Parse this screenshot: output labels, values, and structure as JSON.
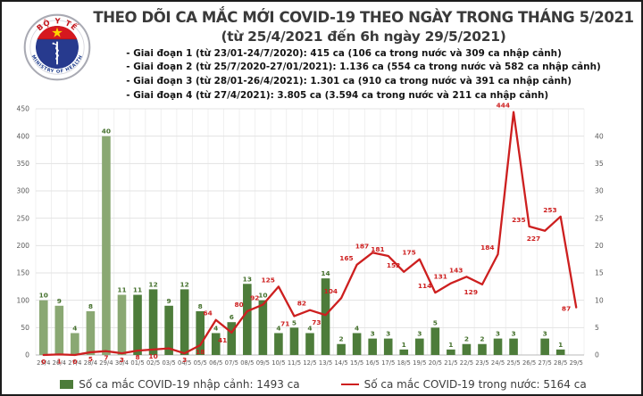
{
  "header": {
    "title": "THEO DÕI CA MẮC MỚI COVID-19 THEO NGÀY TRONG THÁNG 5/2021",
    "subtitle": "(từ 25/4/2021 đến 6h ngày 29/5/2021)",
    "bullets": [
      "- Giai đoạn 1 (từ 23/01-24/7/2020): 415 ca (106 ca trong nước và 309 ca nhập cảnh)",
      "- Giai đoạn 2 (từ 25/7/2020-27/01/2021): 1.136 ca (554 ca trong nước và 582 ca nhập cảnh)",
      "- Giai đoạn 3 (từ 28/01-26/4/2021): 1.301 ca (910 ca trong nước và 391 ca nhập cảnh)",
      "- Giai đoạn 4 (từ 27/4/2021): 3.805 ca (3.594 ca trong nước và 211 ca nhập cảnh)"
    ],
    "logo": {
      "top_text": "BỘ Y TẾ",
      "bottom_text": "MINISTRY OF HEALTH"
    }
  },
  "chart_data": {
    "type": "bar+line",
    "categories": [
      "25/4",
      "26/4",
      "27/4",
      "28/4",
      "29/4",
      "30/4",
      "01/5",
      "02/5",
      "03/5",
      "04/5",
      "05/5",
      "06/5",
      "07/5",
      "08/5",
      "09/5",
      "10/5",
      "11/5",
      "12/5",
      "13/5",
      "14/5",
      "15/5",
      "16/5",
      "17/5",
      "18/5",
      "19/5",
      "20/5",
      "21/5",
      "22/5",
      "23/5",
      "24/5",
      "25/5",
      "26/5",
      "27/5",
      "28/5",
      "29/5"
    ],
    "series": [
      {
        "name": "Số ca mắc COVID-19 nhập cảnh",
        "type": "bar",
        "axis": "right",
        "values": [
          10,
          9,
          4,
          8,
          40,
          11,
          11,
          12,
          9,
          12,
          8,
          4,
          6,
          13,
          10,
          4,
          5,
          4,
          14,
          2,
          4,
          3,
          3,
          1,
          3,
          5,
          1,
          2,
          2,
          3,
          3,
          0,
          3,
          1,
          0
        ],
        "color_april": "#8aa873",
        "color_may": "#4d7c3a",
        "april_bar_count": 6,
        "label_color": "#44702c"
      },
      {
        "name": "Số ca mắc COVID-19 trong nước",
        "type": "line",
        "axis": "left",
        "values": [
          0,
          1,
          0,
          5,
          7,
          3,
          8,
          10,
          12,
          3,
          18,
          64,
          41,
          80,
          92,
          125,
          71,
          82,
          73,
          104,
          165,
          187,
          181,
          152,
          175,
          114,
          131,
          143,
          129,
          184,
          444,
          235,
          227,
          253,
          87
        ],
        "point_labels": [
          "0",
          "1",
          "0",
          "5",
          "7",
          "3",
          "8",
          "10",
          "",
          "3",
          "18",
          "64",
          "41",
          "80",
          "92",
          "125",
          "71",
          "82",
          "73",
          "104",
          "165",
          "187",
          "181",
          "152",
          "175",
          "114",
          "131",
          "143",
          "129",
          "184",
          "444",
          "235",
          "227",
          "253",
          "87"
        ],
        "color": "#cd1f1f"
      }
    ],
    "left_axis": {
      "min": 0,
      "max": 450,
      "step": 50,
      "labeled_max": 450
    },
    "right_axis": {
      "min": 0,
      "max": 45,
      "step": 5,
      "labeled_max": 40
    },
    "grid": "horizontal+faint-vertical",
    "legend_position": "bottom-center",
    "axis_text_color": "#5a5a5a",
    "gridline_color": "#e3e3e3"
  },
  "legend": {
    "items": [
      {
        "swatch": "green-bar",
        "label": "Số ca mắc COVID-19 nhập cảnh: 1493 ca"
      },
      {
        "swatch": "red-line",
        "label": "Số ca mắc COVID-19 trong nước: 5164 ca"
      }
    ]
  }
}
